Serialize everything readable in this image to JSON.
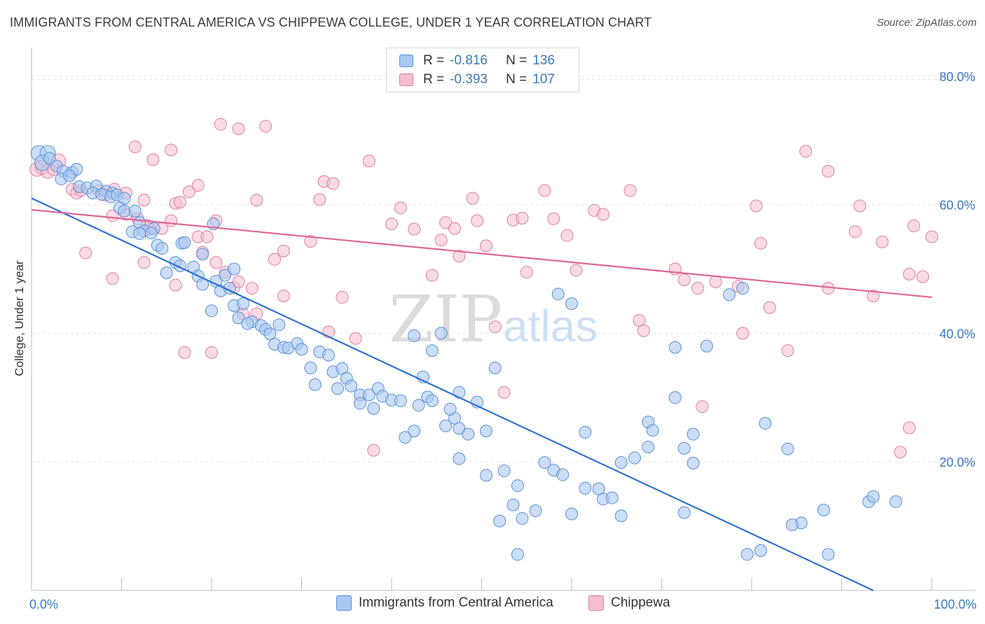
{
  "title": "IMMIGRANTS FROM CENTRAL AMERICA VS CHIPPEWA COLLEGE, UNDER 1 YEAR CORRELATION CHART",
  "source": "Source: ZipAtlas.com",
  "watermark": {
    "zip": "ZIP",
    "atlas": "atlas"
  },
  "legend": {
    "r_label": "R =",
    "n_label": "N =",
    "rows": [
      {
        "r": "-0.816",
        "n": "136"
      },
      {
        "r": "-0.393",
        "n": "107"
      }
    ]
  },
  "bottom_legend": [
    "Immigrants from Central America",
    "Chippewa"
  ],
  "colors": {
    "blue_fill": "#a9c8f0",
    "blue_stroke": "#5d8fd6",
    "blue_line": "#2f72d0",
    "pink_fill": "#f6bdd0",
    "pink_stroke": "#e07fa0",
    "pink_line": "#e06595",
    "tick_text": "#3b78c4"
  },
  "chart_data": {
    "type": "scatter",
    "title": "IMMIGRANTS FROM CENTRAL AMERICA VS CHIPPEWA COLLEGE, UNDER 1 YEAR CORRELATION CHART",
    "xlabel": "",
    "ylabel": "College, Under 1 year",
    "xlim": [
      0,
      100
    ],
    "ylim": [
      0,
      84
    ],
    "x_tick_labels": [
      "0.0%",
      "100.0%"
    ],
    "y_ticks": [
      20,
      40,
      60,
      80
    ],
    "y_tick_labels": [
      "20.0%",
      "40.0%",
      "60.0%",
      "80.0%"
    ],
    "grid": true,
    "legend_position": "top-center",
    "series": [
      {
        "name": "Immigrants from Central America",
        "color": "#5d8fd6",
        "trend": {
          "x": [
            0,
            93.5
          ],
          "y": [
            61.0,
            0
          ]
        },
        "points": [
          [
            0.8,
            68.0
          ],
          [
            1.8,
            68.0
          ],
          [
            1.2,
            66.5
          ],
          [
            2.0,
            67.2
          ],
          [
            2.8,
            66.0
          ],
          [
            3.5,
            65.2
          ],
          [
            4.5,
            65.0
          ],
          [
            5.0,
            65.5
          ],
          [
            3.3,
            64.0
          ],
          [
            4.2,
            64.5
          ],
          [
            5.3,
            62.8
          ],
          [
            6.2,
            62.6
          ],
          [
            7.2,
            62.9
          ],
          [
            6.8,
            61.8
          ],
          [
            8.3,
            62.1
          ],
          [
            7.8,
            61.6
          ],
          [
            9.0,
            61.8
          ],
          [
            8.8,
            61.2
          ],
          [
            9.5,
            61.5
          ],
          [
            10.3,
            61.0
          ],
          [
            9.8,
            59.5
          ],
          [
            10.3,
            59.0
          ],
          [
            11.5,
            59.0
          ],
          [
            12.0,
            57.2
          ],
          [
            11.2,
            55.8
          ],
          [
            12.5,
            55.9
          ],
          [
            12.0,
            55.5
          ],
          [
            13.6,
            56.3
          ],
          [
            13.3,
            55.6
          ],
          [
            20.2,
            57.0
          ],
          [
            14.0,
            53.7
          ],
          [
            14.5,
            53.2
          ],
          [
            16.7,
            54.0
          ],
          [
            17.0,
            54.1
          ],
          [
            16.0,
            51.0
          ],
          [
            15.0,
            49.4
          ],
          [
            16.5,
            50.5
          ],
          [
            18.0,
            50.3
          ],
          [
            19.0,
            52.3
          ],
          [
            18.5,
            48.9
          ],
          [
            19.0,
            47.6
          ],
          [
            20.5,
            48.1
          ],
          [
            21.5,
            49.0
          ],
          [
            22.5,
            50.0
          ],
          [
            21.0,
            46.6
          ],
          [
            22.0,
            47.0
          ],
          [
            20.0,
            43.5
          ],
          [
            22.5,
            44.3
          ],
          [
            23.5,
            44.6
          ],
          [
            24.5,
            41.8
          ],
          [
            23.0,
            42.4
          ],
          [
            25.5,
            41.2
          ],
          [
            24.0,
            41.5
          ],
          [
            26.0,
            40.6
          ],
          [
            27.5,
            41.3
          ],
          [
            26.5,
            39.9
          ],
          [
            27.0,
            38.3
          ],
          [
            28.0,
            37.8
          ],
          [
            28.5,
            37.7
          ],
          [
            29.5,
            38.4
          ],
          [
            30.0,
            37.5
          ],
          [
            31.0,
            34.6
          ],
          [
            32.0,
            37.1
          ],
          [
            33.0,
            36.6
          ],
          [
            31.5,
            32.0
          ],
          [
            33.5,
            34.0
          ],
          [
            34.5,
            34.5
          ],
          [
            35.0,
            33.0
          ],
          [
            34.0,
            31.4
          ],
          [
            35.5,
            31.8
          ],
          [
            36.5,
            30.4
          ],
          [
            37.5,
            30.4
          ],
          [
            38.0,
            28.3
          ],
          [
            36.5,
            29.1
          ],
          [
            38.5,
            31.4
          ],
          [
            39.0,
            30.2
          ],
          [
            40.0,
            29.6
          ],
          [
            41.0,
            29.5
          ],
          [
            43.0,
            28.8
          ],
          [
            44.0,
            30.1
          ],
          [
            44.5,
            29.5
          ],
          [
            42.5,
            24.8
          ],
          [
            41.5,
            23.8
          ],
          [
            46.0,
            25.6
          ],
          [
            47.5,
            25.2
          ],
          [
            48.5,
            24.3
          ],
          [
            47.0,
            26.8
          ],
          [
            49.5,
            29.3
          ],
          [
            46.5,
            28.2
          ],
          [
            47.5,
            30.8
          ],
          [
            43.5,
            33.2
          ],
          [
            42.5,
            39.6
          ],
          [
            44.5,
            37.3
          ],
          [
            47.5,
            20.5
          ],
          [
            50.5,
            17.9
          ],
          [
            52.5,
            18.6
          ],
          [
            54.0,
            16.3
          ],
          [
            53.5,
            13.3
          ],
          [
            52.0,
            10.8
          ],
          [
            54.5,
            11.2
          ],
          [
            54.0,
            5.6
          ],
          [
            56.0,
            12.4
          ],
          [
            58.0,
            18.7
          ],
          [
            57.0,
            19.9
          ],
          [
            59.0,
            18.0
          ],
          [
            60.0,
            11.9
          ],
          [
            61.5,
            24.6
          ],
          [
            61.5,
            15.9
          ],
          [
            63.0,
            15.8
          ],
          [
            63.5,
            14.2
          ],
          [
            64.5,
            14.4
          ],
          [
            65.5,
            19.9
          ],
          [
            65.5,
            11.6
          ],
          [
            67.0,
            20.6
          ],
          [
            68.5,
            26.2
          ],
          [
            69.0,
            24.9
          ],
          [
            68.5,
            22.3
          ],
          [
            72.5,
            12.1
          ],
          [
            71.5,
            30.0
          ],
          [
            73.5,
            24.3
          ],
          [
            72.5,
            22.1
          ],
          [
            73.5,
            19.8
          ],
          [
            50.5,
            24.8
          ],
          [
            51.5,
            34.6
          ],
          [
            45.5,
            40.0
          ],
          [
            58.5,
            46.1
          ],
          [
            60.0,
            44.6
          ],
          [
            71.5,
            37.8
          ],
          [
            75.0,
            38.0
          ],
          [
            81.5,
            26.0
          ],
          [
            84.0,
            22.0
          ],
          [
            88.0,
            12.5
          ],
          [
            77.5,
            46.0
          ],
          [
            79.0,
            47.0
          ],
          [
            93.0,
            13.8
          ],
          [
            93.5,
            14.6
          ],
          [
            96.0,
            13.8
          ],
          [
            85.5,
            10.5
          ],
          [
            84.5,
            10.2
          ],
          [
            79.5,
            5.6
          ],
          [
            81.0,
            6.2
          ],
          [
            88.5,
            5.6
          ]
        ]
      },
      {
        "name": "Chippewa",
        "color": "#e07fa0",
        "trend": {
          "x": [
            0,
            100
          ],
          "y": [
            59.2,
            45.6
          ]
        },
        "points": [
          [
            0.6,
            65.5
          ],
          [
            1.2,
            65.8
          ],
          [
            1.8,
            65.2
          ],
          [
            2.5,
            65.6
          ],
          [
            3.0,
            66.8
          ],
          [
            4.5,
            62.4
          ],
          [
            5.0,
            61.8
          ],
          [
            5.5,
            62.2
          ],
          [
            7.5,
            62.2
          ],
          [
            8.2,
            61.5
          ],
          [
            9.2,
            62.4
          ],
          [
            10.5,
            61.8
          ],
          [
            9.0,
            58.3
          ],
          [
            10.5,
            58.5
          ],
          [
            12.5,
            60.7
          ],
          [
            11.8,
            57.8
          ],
          [
            12.8,
            56.8
          ],
          [
            13.2,
            56.2
          ],
          [
            14.5,
            56.3
          ],
          [
            15.5,
            57.5
          ],
          [
            16.0,
            60.2
          ],
          [
            16.5,
            60.4
          ],
          [
            17.5,
            62.0
          ],
          [
            18.5,
            63.0
          ],
          [
            18.5,
            55.0
          ],
          [
            19.5,
            55.0
          ],
          [
            20.5,
            57.5
          ],
          [
            19.0,
            52.6
          ],
          [
            20.5,
            51.0
          ],
          [
            21.5,
            49.5
          ],
          [
            22.5,
            47.1
          ],
          [
            23.0,
            48.0
          ],
          [
            24.5,
            47.0
          ],
          [
            23.5,
            43.0
          ],
          [
            25.0,
            43.0
          ],
          [
            25.0,
            60.7
          ],
          [
            27.0,
            51.5
          ],
          [
            28.0,
            52.8
          ],
          [
            28.0,
            45.8
          ],
          [
            31.0,
            54.3
          ],
          [
            32.0,
            60.8
          ],
          [
            32.5,
            63.6
          ],
          [
            33.5,
            63.3
          ],
          [
            33.0,
            40.2
          ],
          [
            34.5,
            45.6
          ],
          [
            36.0,
            39.2
          ],
          [
            37.5,
            66.8
          ],
          [
            38.0,
            21.8
          ],
          [
            40.0,
            57.0
          ],
          [
            41.0,
            59.5
          ],
          [
            42.5,
            56.2
          ],
          [
            44.5,
            49.0
          ],
          [
            45.5,
            54.5
          ],
          [
            46.0,
            57.2
          ],
          [
            47.0,
            56.3
          ],
          [
            47.5,
            52.0
          ],
          [
            49.0,
            61.0
          ],
          [
            49.5,
            57.5
          ],
          [
            50.5,
            53.6
          ],
          [
            51.5,
            41.0
          ],
          [
            52.5,
            30.8
          ],
          [
            53.5,
            57.6
          ],
          [
            54.5,
            57.9
          ],
          [
            55.0,
            49.5
          ],
          [
            57.0,
            62.2
          ],
          [
            58.0,
            57.8
          ],
          [
            59.5,
            55.2
          ],
          [
            60.5,
            49.8
          ],
          [
            62.5,
            59.1
          ],
          [
            63.5,
            58.5
          ],
          [
            66.5,
            62.2
          ],
          [
            67.5,
            42.0
          ],
          [
            68.0,
            40.4
          ],
          [
            71.5,
            50.0
          ],
          [
            72.5,
            48.3
          ],
          [
            74.0,
            47.0
          ],
          [
            76.0,
            48.0
          ],
          [
            78.5,
            47.3
          ],
          [
            79.0,
            40.0
          ],
          [
            80.5,
            59.8
          ],
          [
            81.0,
            54.0
          ],
          [
            82.0,
            44.0
          ],
          [
            84.0,
            37.3
          ],
          [
            86.0,
            68.3
          ],
          [
            88.5,
            47.0
          ],
          [
            88.5,
            65.2
          ],
          [
            91.5,
            55.8
          ],
          [
            92.0,
            59.8
          ],
          [
            93.5,
            45.8
          ],
          [
            94.5,
            54.2
          ],
          [
            97.5,
            49.2
          ],
          [
            98.0,
            56.7
          ],
          [
            99.0,
            48.8
          ],
          [
            100.0,
            55.0
          ],
          [
            97.5,
            25.3
          ],
          [
            96.5,
            21.5
          ],
          [
            74.5,
            28.6
          ],
          [
            21.0,
            72.5
          ],
          [
            23.0,
            71.8
          ],
          [
            26.0,
            72.2
          ],
          [
            11.5,
            69.0
          ],
          [
            13.5,
            67.0
          ],
          [
            15.5,
            68.5
          ],
          [
            17.0,
            37.0
          ],
          [
            20.0,
            37.0
          ],
          [
            6.0,
            52.5
          ],
          [
            9.0,
            48.5
          ],
          [
            12.5,
            51.0
          ],
          [
            16.0,
            47.5
          ]
        ]
      }
    ]
  }
}
